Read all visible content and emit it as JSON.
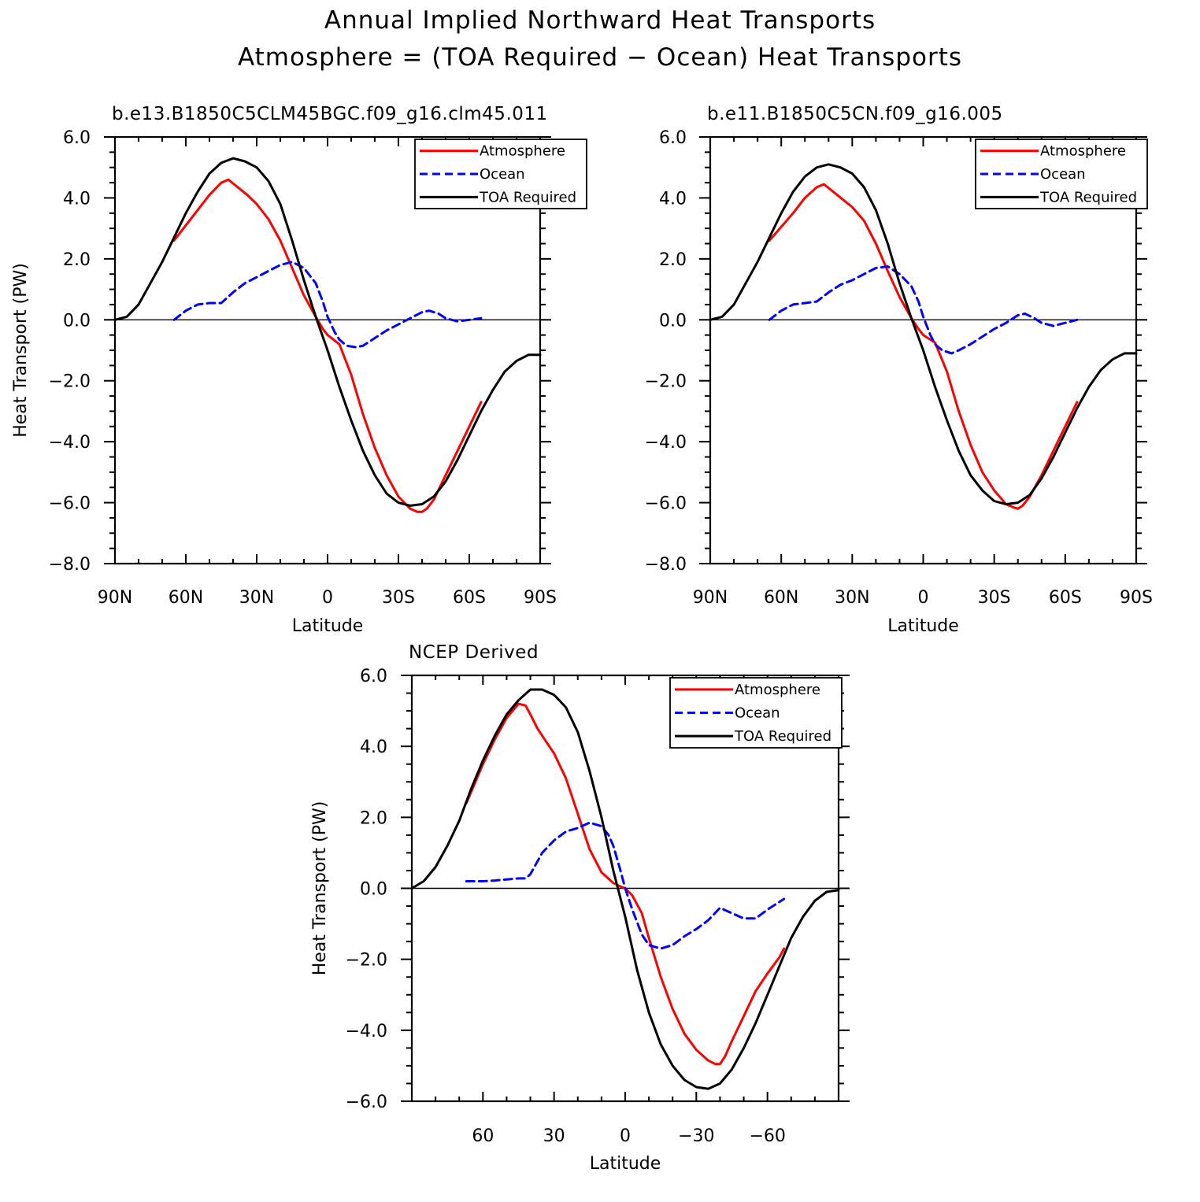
{
  "figure": {
    "title_line1": "Annual Implied Northward Heat Transports",
    "title_line2": "Atmosphere = (TOA Required − Ocean) Heat Transports"
  },
  "chart_data": [
    {
      "type": "line",
      "title": "b.e13.B1850C5CLM45BGC.f09_g16.clm45.011",
      "xlabel": "Latitude",
      "ylabel": "Heat Transport (PW)",
      "xlim": [
        90,
        -90
      ],
      "ylim": [
        -8,
        6
      ],
      "xticks": [
        90,
        60,
        30,
        0,
        -30,
        -60,
        -90
      ],
      "xtick_labels": [
        "90N",
        "60N",
        "30N",
        "0",
        "30S",
        "60S",
        "90S"
      ],
      "yticks": [
        -8,
        -6,
        -4,
        -2,
        0,
        2,
        4,
        6
      ],
      "ytick_labels": [
        "−8.0",
        "−6.0",
        "−4.0",
        "−2.0",
        "0.0",
        "2.0",
        "4.0",
        "6.0"
      ],
      "legend_position": "top-right",
      "series": [
        {
          "name": "Atmosphere",
          "color": "#ff0000",
          "dash": "solid",
          "x": [
            65,
            55,
            50,
            45,
            42,
            38,
            34,
            30,
            25,
            20,
            15,
            10,
            5,
            2,
            0,
            -5,
            -10,
            -15,
            -20,
            -25,
            -30,
            -35,
            -38,
            -40,
            -42,
            -45,
            -50,
            -55,
            -60,
            -65
          ],
          "y": [
            2.6,
            3.6,
            4.1,
            4.5,
            4.6,
            4.35,
            4.1,
            3.8,
            3.3,
            2.6,
            1.7,
            0.8,
            0.1,
            -0.3,
            -0.5,
            -0.8,
            -1.8,
            -3.1,
            -4.2,
            -5.1,
            -5.8,
            -6.2,
            -6.3,
            -6.3,
            -6.2,
            -5.9,
            -5.1,
            -4.3,
            -3.5,
            -2.7
          ]
        },
        {
          "name": "Ocean",
          "color": "#0000ff",
          "dash": "dashed",
          "x": [
            65,
            60,
            55,
            50,
            45,
            40,
            35,
            30,
            25,
            20,
            15,
            10,
            5,
            2,
            0,
            -3,
            -5,
            -8,
            -12,
            -15,
            -20,
            -25,
            -30,
            -35,
            -40,
            -43,
            -47,
            -50,
            -55,
            -60,
            -65
          ],
          "y": [
            0.0,
            0.3,
            0.5,
            0.55,
            0.55,
            0.9,
            1.2,
            1.4,
            1.6,
            1.8,
            1.9,
            1.7,
            1.2,
            0.6,
            0.1,
            -0.4,
            -0.65,
            -0.85,
            -0.9,
            -0.85,
            -0.6,
            -0.35,
            -0.15,
            0.05,
            0.25,
            0.3,
            0.2,
            0.05,
            -0.05,
            0.0,
            0.05
          ]
        },
        {
          "name": "TOA Required",
          "color": "#000000",
          "dash": "solid",
          "x": [
            90,
            85,
            80,
            75,
            70,
            65,
            60,
            55,
            50,
            45,
            40,
            35,
            30,
            25,
            20,
            15,
            10,
            5,
            0,
            -5,
            -10,
            -15,
            -20,
            -25,
            -30,
            -35,
            -40,
            -45,
            -50,
            -55,
            -60,
            -65,
            -70,
            -75,
            -80,
            -85,
            -90
          ],
          "y": [
            0.0,
            0.1,
            0.5,
            1.2,
            1.9,
            2.7,
            3.5,
            4.2,
            4.8,
            5.15,
            5.3,
            5.2,
            5.0,
            4.55,
            3.8,
            2.6,
            1.3,
            0.1,
            -1.0,
            -2.2,
            -3.3,
            -4.3,
            -5.1,
            -5.7,
            -6.0,
            -6.1,
            -6.05,
            -5.8,
            -5.3,
            -4.6,
            -3.8,
            -3.0,
            -2.3,
            -1.7,
            -1.35,
            -1.15,
            -1.15
          ]
        }
      ]
    },
    {
      "type": "line",
      "title": "b.e11.B1850C5CN.f09_g16.005",
      "xlabel": "Latitude",
      "ylabel": "",
      "xlim": [
        90,
        -90
      ],
      "ylim": [
        -8,
        6
      ],
      "xticks": [
        90,
        60,
        30,
        0,
        -30,
        -60,
        -90
      ],
      "xtick_labels": [
        "90N",
        "60N",
        "30N",
        "0",
        "30S",
        "60S",
        "90S"
      ],
      "yticks": [
        -8,
        -6,
        -4,
        -2,
        0,
        2,
        4,
        6
      ],
      "ytick_labels": [
        "−8.0",
        "−6.0",
        "−4.0",
        "−2.0",
        "0.0",
        "2.0",
        "4.0",
        "6.0"
      ],
      "legend_position": "top-right",
      "series": [
        {
          "name": "Atmosphere",
          "color": "#ff0000",
          "dash": "solid",
          "x": [
            65,
            55,
            50,
            45,
            42,
            38,
            34,
            30,
            25,
            20,
            15,
            10,
            5,
            2,
            0,
            -5,
            -10,
            -15,
            -20,
            -25,
            -30,
            -35,
            -38,
            -40,
            -42,
            -45,
            -50,
            -55,
            -60,
            -65
          ],
          "y": [
            2.6,
            3.5,
            4.0,
            4.35,
            4.45,
            4.2,
            3.95,
            3.7,
            3.25,
            2.5,
            1.6,
            0.75,
            0.05,
            -0.3,
            -0.5,
            -0.75,
            -1.7,
            -3.0,
            -4.1,
            -5.0,
            -5.6,
            -6.05,
            -6.15,
            -6.2,
            -6.1,
            -5.8,
            -5.1,
            -4.3,
            -3.5,
            -2.7
          ]
        },
        {
          "name": "Ocean",
          "color": "#0000ff",
          "dash": "dashed",
          "x": [
            65,
            60,
            55,
            50,
            45,
            40,
            35,
            30,
            25,
            20,
            15,
            10,
            5,
            2,
            0,
            -3,
            -5,
            -8,
            -12,
            -15,
            -20,
            -25,
            -30,
            -35,
            -40,
            -43,
            -47,
            -50,
            -55,
            -60,
            -65
          ],
          "y": [
            0.0,
            0.3,
            0.5,
            0.55,
            0.6,
            0.9,
            1.15,
            1.3,
            1.5,
            1.7,
            1.75,
            1.5,
            1.1,
            0.6,
            0.1,
            -0.5,
            -0.8,
            -1.0,
            -1.1,
            -1.0,
            -0.8,
            -0.55,
            -0.3,
            -0.1,
            0.15,
            0.2,
            0.05,
            -0.1,
            -0.2,
            -0.1,
            0.0
          ]
        },
        {
          "name": "TOA Required",
          "color": "#000000",
          "dash": "solid",
          "x": [
            90,
            85,
            80,
            75,
            70,
            65,
            60,
            55,
            50,
            45,
            40,
            35,
            30,
            25,
            20,
            15,
            10,
            5,
            0,
            -5,
            -10,
            -15,
            -20,
            -25,
            -30,
            -35,
            -40,
            -45,
            -50,
            -55,
            -60,
            -65,
            -70,
            -75,
            -80,
            -85,
            -90
          ],
          "y": [
            0.0,
            0.1,
            0.5,
            1.2,
            1.9,
            2.7,
            3.5,
            4.2,
            4.7,
            5.0,
            5.1,
            5.0,
            4.8,
            4.35,
            3.6,
            2.5,
            1.2,
            0.05,
            -1.0,
            -2.2,
            -3.3,
            -4.3,
            -5.1,
            -5.6,
            -5.95,
            -6.05,
            -6.0,
            -5.75,
            -5.2,
            -4.5,
            -3.7,
            -2.9,
            -2.2,
            -1.65,
            -1.3,
            -1.1,
            -1.1
          ]
        }
      ]
    },
    {
      "type": "line",
      "title": "NCEP Derived",
      "xlabel": "Latitude",
      "ylabel": "Heat Transport (PW)",
      "xlim": [
        90,
        -90
      ],
      "ylim": [
        -6,
        6
      ],
      "xticks": [
        60,
        30,
        0,
        -30,
        -60
      ],
      "xtick_labels": [
        "60",
        "30",
        "0",
        "−30",
        "−60"
      ],
      "yticks": [
        -6,
        -4,
        -2,
        0,
        2,
        4,
        6
      ],
      "ytick_labels": [
        "−6.0",
        "−4.0",
        "−2.0",
        "0.0",
        "2.0",
        "4.0",
        "6.0"
      ],
      "legend_position": "top-right",
      "series": [
        {
          "name": "Atmosphere",
          "color": "#ff0000",
          "dash": "solid",
          "x": [
            67,
            60,
            55,
            50,
            45,
            42,
            40,
            37,
            34,
            30,
            25,
            20,
            15,
            10,
            5,
            2,
            0,
            -3,
            -7,
            -10,
            -15,
            -20,
            -25,
            -30,
            -35,
            -38,
            -40,
            -42,
            -45,
            -50,
            -55,
            -60,
            -65,
            -67
          ],
          "y": [
            2.4,
            3.5,
            4.2,
            4.8,
            5.2,
            5.15,
            4.9,
            4.5,
            4.2,
            3.8,
            3.1,
            2.1,
            1.1,
            0.45,
            0.15,
            0.05,
            0.0,
            -0.2,
            -0.7,
            -1.4,
            -2.5,
            -3.4,
            -4.1,
            -4.55,
            -4.85,
            -4.95,
            -4.95,
            -4.75,
            -4.3,
            -3.6,
            -2.9,
            -2.4,
            -1.95,
            -1.7
          ]
        },
        {
          "name": "Ocean",
          "color": "#0000ff",
          "dash": "dashed",
          "x": [
            67,
            60,
            55,
            50,
            45,
            42,
            40,
            35,
            30,
            25,
            20,
            15,
            10,
            7,
            5,
            2,
            0,
            -3,
            -7,
            -10,
            -15,
            -20,
            -25,
            -30,
            -35,
            -40,
            -45,
            -50,
            -55,
            -60,
            -67
          ],
          "y": [
            0.2,
            0.2,
            0.22,
            0.25,
            0.28,
            0.28,
            0.4,
            1.0,
            1.35,
            1.6,
            1.7,
            1.85,
            1.75,
            1.5,
            1.2,
            0.5,
            0.0,
            -0.6,
            -1.3,
            -1.6,
            -1.7,
            -1.6,
            -1.35,
            -1.15,
            -0.9,
            -0.55,
            -0.7,
            -0.85,
            -0.85,
            -0.6,
            -0.3
          ]
        },
        {
          "name": "TOA Required",
          "color": "#000000",
          "dash": "solid",
          "x": [
            90,
            85,
            80,
            75,
            70,
            65,
            60,
            55,
            50,
            45,
            40,
            35,
            30,
            25,
            20,
            15,
            10,
            5,
            0,
            -5,
            -10,
            -15,
            -20,
            -25,
            -30,
            -35,
            -40,
            -45,
            -50,
            -55,
            -60,
            -65,
            -70,
            -75,
            -80,
            -85,
            -90
          ],
          "y": [
            0.0,
            0.2,
            0.6,
            1.2,
            1.9,
            2.8,
            3.6,
            4.3,
            4.9,
            5.3,
            5.6,
            5.6,
            5.45,
            5.1,
            4.4,
            3.3,
            2.0,
            0.5,
            -0.8,
            -2.3,
            -3.5,
            -4.4,
            -5.0,
            -5.4,
            -5.6,
            -5.65,
            -5.5,
            -5.1,
            -4.5,
            -3.8,
            -3.0,
            -2.2,
            -1.4,
            -0.8,
            -0.35,
            -0.1,
            -0.05
          ]
        }
      ]
    }
  ]
}
